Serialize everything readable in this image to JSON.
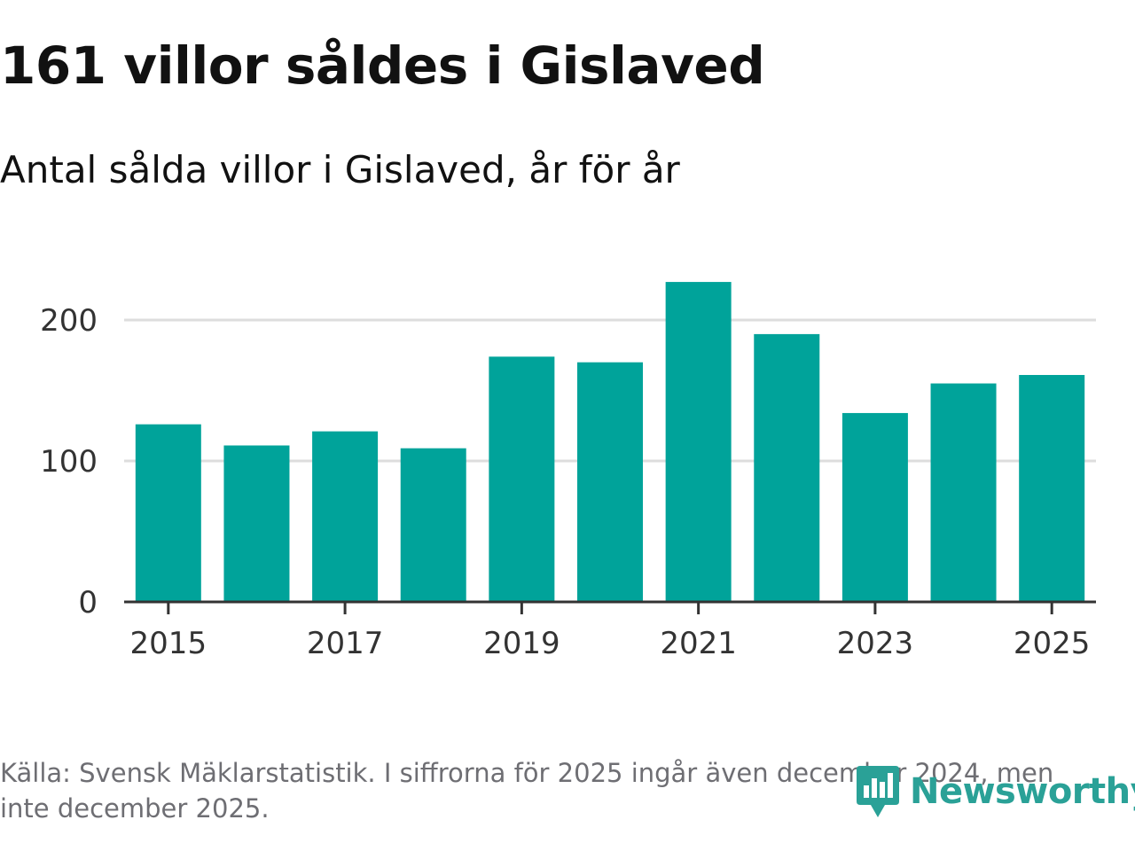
{
  "header": {
    "title": "161 villor såldes i Gislaved",
    "subtitle": "Antal sålda villor i Gislaved, år för år"
  },
  "chart_data": {
    "type": "bar",
    "title": "161 villor såldes i Gislaved",
    "subtitle": "Antal sålda villor i Gislaved, år för år",
    "categories": [
      "2015",
      "2016",
      "2017",
      "2018",
      "2019",
      "2020",
      "2021",
      "2022",
      "2023",
      "2024",
      "2025"
    ],
    "values": [
      126,
      111,
      121,
      109,
      174,
      170,
      227,
      190,
      134,
      155,
      161
    ],
    "x_tick_labels": [
      "2015",
      "2017",
      "2019",
      "2021",
      "2023",
      "2025"
    ],
    "y_ticks": [
      0,
      100,
      200
    ],
    "ylim": [
      0,
      240
    ],
    "xlabel": "",
    "ylabel": "",
    "grid": true,
    "bar_color": "#00a39a",
    "grid_color": "#dddddd",
    "axis_color": "#333333"
  },
  "footer": {
    "source": "Källa: Svensk Mäklarstatistik. I siffrorna för 2025 ingår även december 2024, men inte december 2025."
  },
  "logo": {
    "text": "Newsworthy",
    "icon": "newsworthy-chart-icon",
    "color": "#2aa197"
  }
}
